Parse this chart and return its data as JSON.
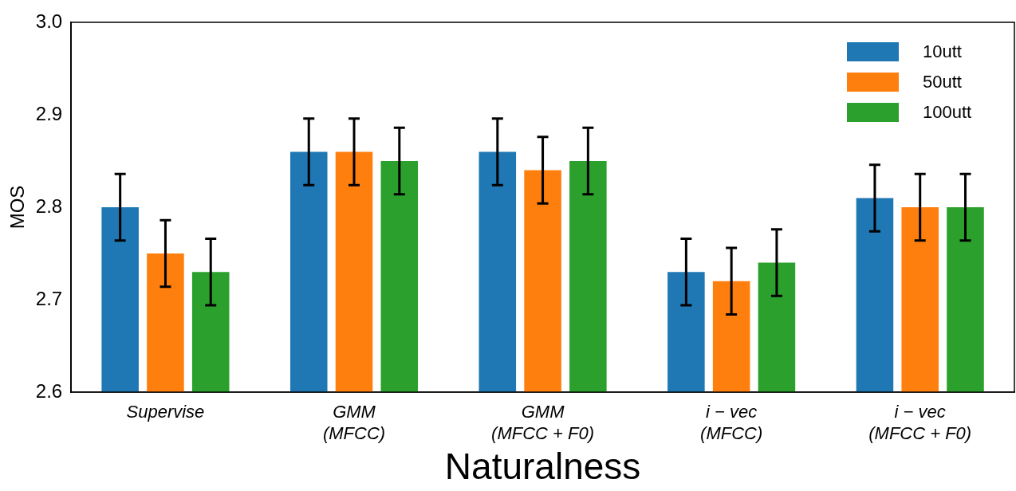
{
  "chart_data": {
    "type": "bar",
    "xlabel": "Naturalness",
    "ylabel": "MOS",
    "categories": [
      "Supervise",
      "GMM\n(MFCC)",
      "GMM\n(MFCC + F0)",
      "i − vec\n(MFCC)",
      "i − vec\n(MFCC + F0)"
    ],
    "series": [
      {
        "name": "10utt",
        "color": "#1f77b4",
        "values": [
          2.8,
          2.86,
          2.86,
          2.73,
          2.81
        ],
        "errors": [
          0.036,
          0.036,
          0.036,
          0.036,
          0.036
        ]
      },
      {
        "name": "50utt",
        "color": "#ff7f0e",
        "values": [
          2.75,
          2.86,
          2.84,
          2.72,
          2.8
        ],
        "errors": [
          0.036,
          0.036,
          0.036,
          0.036,
          0.036
        ]
      },
      {
        "name": "100utt",
        "color": "#2ca02c",
        "values": [
          2.73,
          2.85,
          2.85,
          2.74,
          2.8
        ],
        "errors": [
          0.036,
          0.036,
          0.036,
          0.036,
          0.036
        ]
      }
    ],
    "ylim": [
      2.6,
      3.0
    ],
    "yticks": [
      {
        "value": 2.6,
        "label": "2.6"
      },
      {
        "value": 2.7,
        "label": "2.7"
      },
      {
        "value": 2.8,
        "label": "2.8"
      },
      {
        "value": 2.9,
        "label": "2.9"
      },
      {
        "value": 3.0,
        "label": "3.0"
      }
    ],
    "legend": "top right"
  }
}
